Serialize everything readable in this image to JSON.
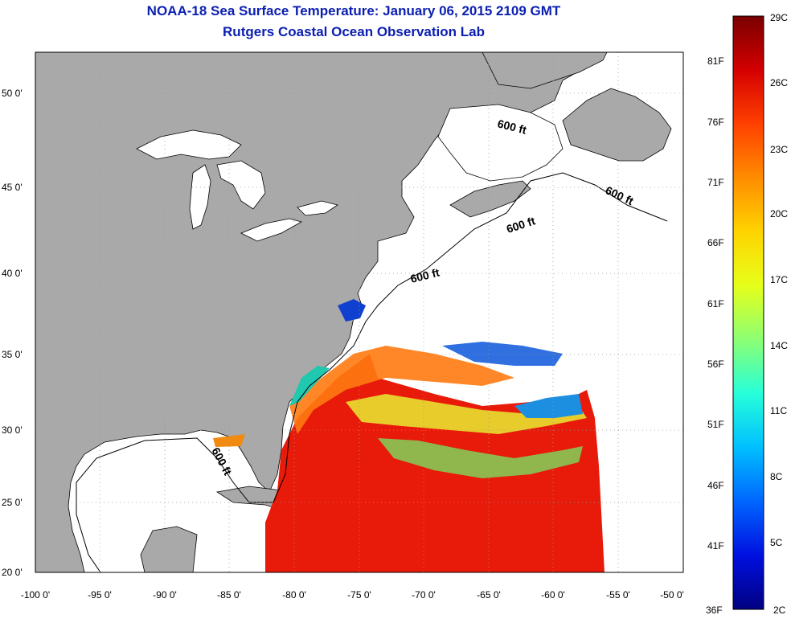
{
  "title_line1": "NOAA-18 Sea Surface Temperature:  January 06, 2015 2109 GMT",
  "title_line2": "Rutgers Coastal Ocean Observation Lab",
  "map": {
    "lat_ticks": [
      "50 0'",
      "45 0'",
      "40 0'",
      "35 0'",
      "30 0'",
      "25 0'",
      "20 0'"
    ],
    "lon_ticks": [
      "-100 0'",
      "-95 0'",
      "-90 0'",
      "-85 0'",
      "-80 0'",
      "-75 0'",
      "-70 0'",
      "-65 0'",
      "-60 0'",
      "-55 0'",
      "-50 0'"
    ],
    "contour_labels": [
      "600 ft",
      "600 ft",
      "600 ft",
      "600 ft",
      "600 ft"
    ],
    "colors": {
      "land": "#a9a9a9",
      "no_data": "#ffffff",
      "grid": "#9a9a9a"
    }
  },
  "colorbar": {
    "celsius_labels": [
      "29C",
      "26C",
      "23C",
      "20C",
      "17C",
      "14C",
      "11C",
      "8C",
      "5C",
      "2C"
    ],
    "fahrenheit_labels": [
      "81F",
      "76F",
      "71F",
      "66F",
      "61F",
      "56F",
      "51F",
      "46F",
      "41F",
      "36F"
    ],
    "gradient": [
      "#7a0000",
      "#d40000",
      "#ff4000",
      "#ff8c00",
      "#ffd400",
      "#e6ff1a",
      "#8cff73",
      "#26ffd9",
      "#00bfff",
      "#0066ff",
      "#0010e0",
      "#000080"
    ]
  }
}
